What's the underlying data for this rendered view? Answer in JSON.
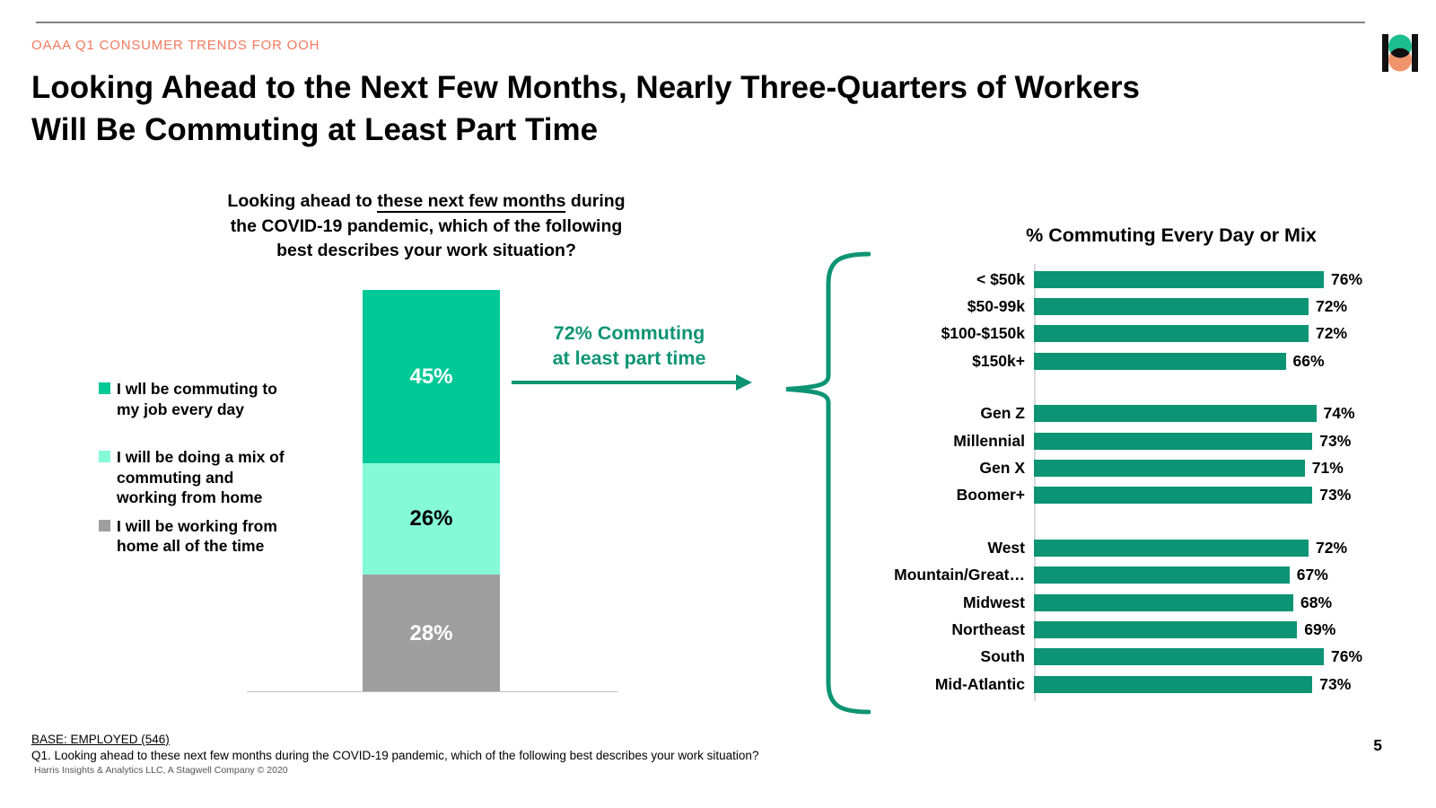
{
  "slide": {
    "eyebrow": "OAAA Q1 CONSUMER TRENDS FOR OOH",
    "title_line1": "Looking Ahead to the Next Few Months, Nearly Three-Quarters of Workers",
    "title_line2": "Will Be Commuting at Least Part Time",
    "page_number": "5",
    "footer": {
      "base": "BASE: EMPLOYED (546)",
      "question": "Q1. Looking ahead to these next few months during the COVID-19 pandemic, which of the following best describes your work situation?",
      "copyright": "Harris Insights & Analytics LLC, A Stagwell Company © 2020"
    },
    "logo_name": "harris-poll-logo"
  },
  "question": {
    "line1_pre": "Looking ahead to ",
    "line1_underlined": "these next few months",
    "line1_post": " during",
    "line2": "the COVID-19 pandemic, which of the following",
    "line3": "best describes your work situation?"
  },
  "annotation": {
    "line1": "72% Commuting",
    "line2": "at least part time"
  },
  "colors": {
    "accent_teal": "#0D9474",
    "stacked_green": "#00C998",
    "stacked_mint": "#85FAD6",
    "stacked_gray": "#9E9E9E",
    "eyebrow_coral": "#F4795E",
    "logo_green": "#1CBE8F",
    "logo_orange": "#F0946C"
  },
  "chart_data": [
    {
      "type": "bar",
      "subtype": "stacked_column",
      "question": "Looking ahead to these next few months during the COVID-19 pandemic, which of the following best describes your work situation?",
      "ylim": [
        0,
        100
      ],
      "annotation": "72% Commuting at least part time",
      "series": [
        {
          "name": "I wll be commuting to\nmy job every day",
          "value": 45,
          "color": "#00C998",
          "label_color": "#FFFFFF"
        },
        {
          "name": "I will be doing a mix of\ncommuting and\nworking from home",
          "value": 26,
          "color": "#85FAD6",
          "label_color": "#000000"
        },
        {
          "name": "I will be working from\nhome all of the time",
          "value": 28,
          "color": "#9E9E9E",
          "label_color": "#FFFFFF"
        }
      ]
    },
    {
      "type": "bar",
      "subtype": "horizontal_grouped",
      "title": "% Commuting Every Day or Mix",
      "bar_color": "#0D9474",
      "xlim": [
        0,
        100
      ],
      "value_suffix": "%",
      "groups": [
        {
          "name": "income",
          "rows": [
            {
              "label": "< $50k",
              "value": 76
            },
            {
              "label": "$50-99k",
              "value": 72
            },
            {
              "label": "$100-$150k",
              "value": 72
            },
            {
              "label": "$150k+",
              "value": 66
            }
          ]
        },
        {
          "name": "generation",
          "rows": [
            {
              "label": "Gen Z",
              "value": 74
            },
            {
              "label": "Millennial",
              "value": 73
            },
            {
              "label": "Gen X",
              "value": 71
            },
            {
              "label": "Boomer+",
              "value": 73
            }
          ]
        },
        {
          "name": "region",
          "rows": [
            {
              "label": "West",
              "value": 72
            },
            {
              "label": "Mountain/Great…",
              "value": 67
            },
            {
              "label": "Midwest",
              "value": 68
            },
            {
              "label": "Northeast",
              "value": 69
            },
            {
              "label": "South",
              "value": 76
            },
            {
              "label": "Mid-Atlantic",
              "value": 73
            }
          ]
        }
      ]
    }
  ]
}
